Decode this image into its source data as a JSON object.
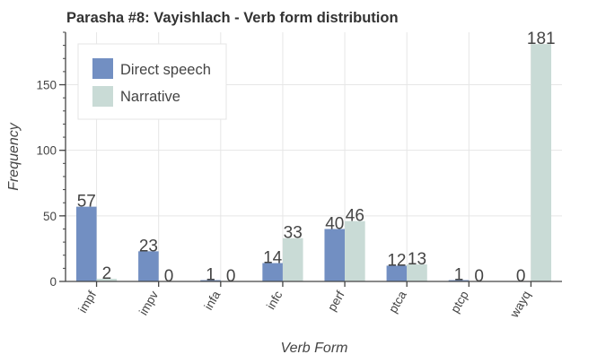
{
  "chart_data": {
    "type": "bar",
    "title": "Parasha #8: Vayishlach - Verb form distribution",
    "xlabel": "Verb Form",
    "ylabel": "Frequency",
    "categories": [
      "impf",
      "impv",
      "infa",
      "infc",
      "perf",
      "ptca",
      "ptcp",
      "wayq"
    ],
    "series": [
      {
        "name": "Direct speech",
        "color": "#728fc2",
        "values": [
          57,
          23,
          1,
          14,
          40,
          12,
          1,
          0
        ]
      },
      {
        "name": "Narrative",
        "color": "#c9dbd6",
        "values": [
          2,
          0,
          0,
          33,
          46,
          13,
          0,
          181
        ]
      }
    ],
    "ylim": [
      0,
      190
    ],
    "yticks": [
      0,
      50,
      100,
      150
    ],
    "grid": true,
    "legend_position": "top-left"
  }
}
